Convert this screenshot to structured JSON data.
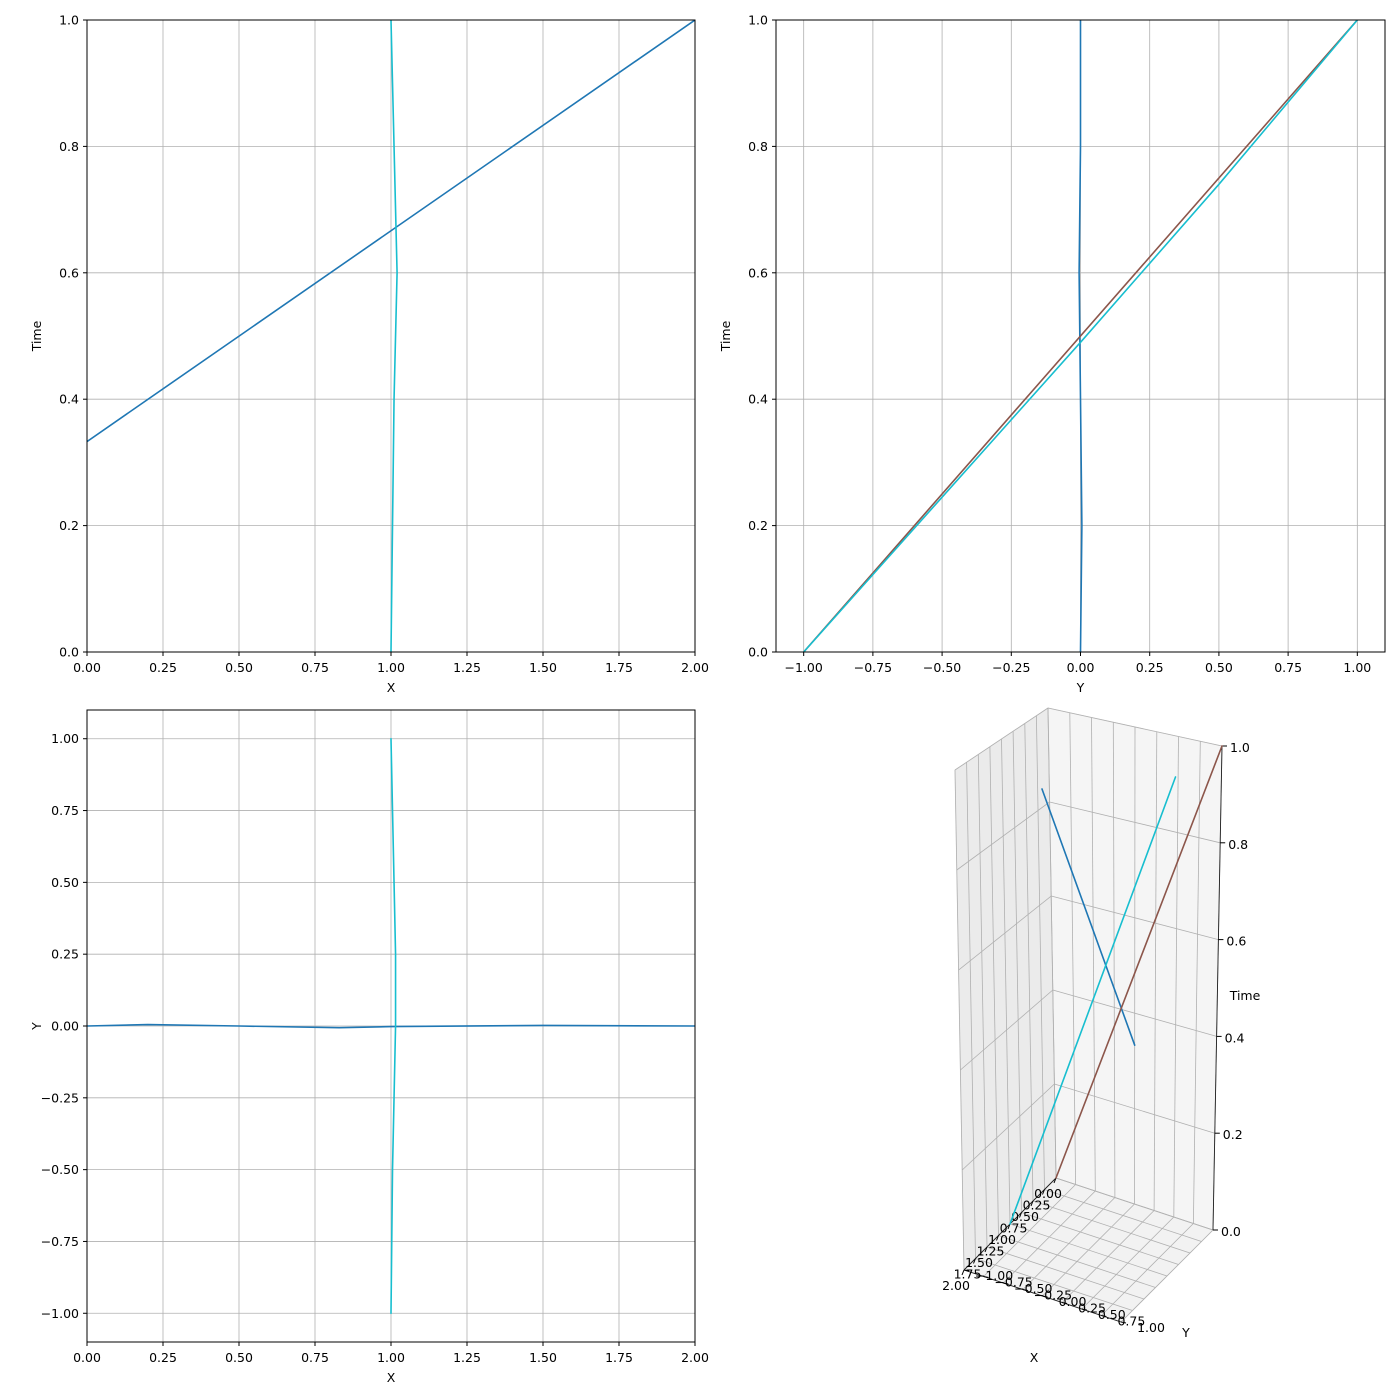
{
  "colors": {
    "c_blue": "#1f77b4",
    "c_brown": "#8c564b",
    "c_cyan": "#17becf"
  },
  "chart_data": [
    {
      "type": "line",
      "xlabel": "X",
      "ylabel": "Time",
      "xlim": [
        0,
        2
      ],
      "ylim": [
        0,
        1
      ],
      "xticks": [
        "0.00",
        "0.25",
        "0.50",
        "0.75",
        "1.00",
        "1.25",
        "1.50",
        "1.75",
        "2.00"
      ],
      "yticks": [
        "0.0",
        "0.2",
        "0.4",
        "0.6",
        "0.8",
        "1.0"
      ],
      "grid": true,
      "series": [
        {
          "color": "#1f77b4",
          "x": [
            0,
            2
          ],
          "y": [
            0.333,
            1.0
          ]
        },
        {
          "color": "#17becf",
          "x": [
            1.0,
            1.005,
            1.01,
            1.02,
            1.01,
            1.005,
            1.0
          ],
          "y": [
            0,
            0.2,
            0.4,
            0.6,
            0.8,
            0.9,
            1.0
          ]
        }
      ]
    },
    {
      "type": "line",
      "xlabel": "Y",
      "ylabel": "Time",
      "xlim": [
        -1.1,
        1.1
      ],
      "ylim": [
        0,
        1
      ],
      "xticks": [
        "−1.00",
        "−0.75",
        "−0.50",
        "−0.25",
        "0.00",
        "0.25",
        "0.50",
        "0.75",
        "1.00"
      ],
      "yticks": [
        "0.0",
        "0.2",
        "0.4",
        "0.6",
        "0.8",
        "1.0"
      ],
      "grid": true,
      "series": [
        {
          "color": "#1f77b4",
          "x": [
            0.0,
            0.005,
            0.0,
            -0.005,
            0.0,
            0.0
          ],
          "y": [
            0,
            0.2,
            0.4,
            0.6,
            0.8,
            1.0
          ]
        },
        {
          "color": "#8c564b",
          "x": [
            -1.0,
            1.0
          ],
          "y": [
            0,
            1.0
          ]
        },
        {
          "color": "#17becf",
          "x": [
            -1.0,
            -0.5,
            0.0,
            0.25,
            0.5,
            1.0
          ],
          "y": [
            0,
            0.245,
            0.49,
            0.615,
            0.74,
            1.0
          ]
        }
      ]
    },
    {
      "type": "line",
      "xlabel": "X",
      "ylabel": "Y",
      "xlim": [
        0,
        2
      ],
      "ylim": [
        -1.1,
        1.1
      ],
      "xticks": [
        "0.00",
        "0.25",
        "0.50",
        "0.75",
        "1.00",
        "1.25",
        "1.50",
        "1.75",
        "2.00"
      ],
      "yticks": [
        "−1.00",
        "−0.75",
        "−0.50",
        "−0.25",
        "0.00",
        "0.25",
        "0.50",
        "0.75",
        "1.00"
      ],
      "grid": true,
      "series": [
        {
          "color": "#1f77b4",
          "x": [
            0,
            0.2,
            0.5,
            0.83,
            1.0,
            1.5,
            2.0
          ],
          "y": [
            0.0,
            0.005,
            0.0,
            -0.006,
            -0.002,
            0.002,
            0.0
          ]
        },
        {
          "color": "#17becf",
          "x": [
            1.0,
            1.005,
            1.015,
            1.015,
            1.005,
            1.0
          ],
          "y": [
            -1.0,
            -0.5,
            0.0,
            0.25,
            0.75,
            1.0
          ]
        }
      ]
    },
    {
      "type": "line3d",
      "xlabel": "X",
      "ylabel": "Y",
      "zlabel": "Time",
      "xlim": [
        0,
        2
      ],
      "ylim": [
        -1,
        1
      ],
      "zlim": [
        0,
        1
      ],
      "xticks": [
        "0.00",
        "0.25",
        "0.50",
        "0.75",
        "1.00",
        "1.25",
        "1.50",
        "1.75",
        "2.00"
      ],
      "yticks": [
        "−1.00",
        "−0.75",
        "−0.50",
        "−0.25",
        "0.00",
        "0.25",
        "0.50",
        "0.75",
        "1.00"
      ],
      "zticks": [
        "0.0",
        "0.2",
        "0.4",
        "0.6",
        "0.8",
        "1.0"
      ],
      "grid": true,
      "series": [
        {
          "color": "#1f77b4",
          "x": [
            0,
            2
          ],
          "y": [
            0,
            0
          ],
          "z": [
            0.333,
            1.0
          ]
        },
        {
          "color": "#8c564b",
          "x": [
            0,
            0
          ],
          "y": [
            -1,
            1
          ],
          "z": [
            0,
            1
          ]
        },
        {
          "color": "#17becf",
          "x": [
            1,
            1
          ],
          "y": [
            -1,
            1
          ],
          "z": [
            0,
            1
          ]
        }
      ]
    }
  ]
}
